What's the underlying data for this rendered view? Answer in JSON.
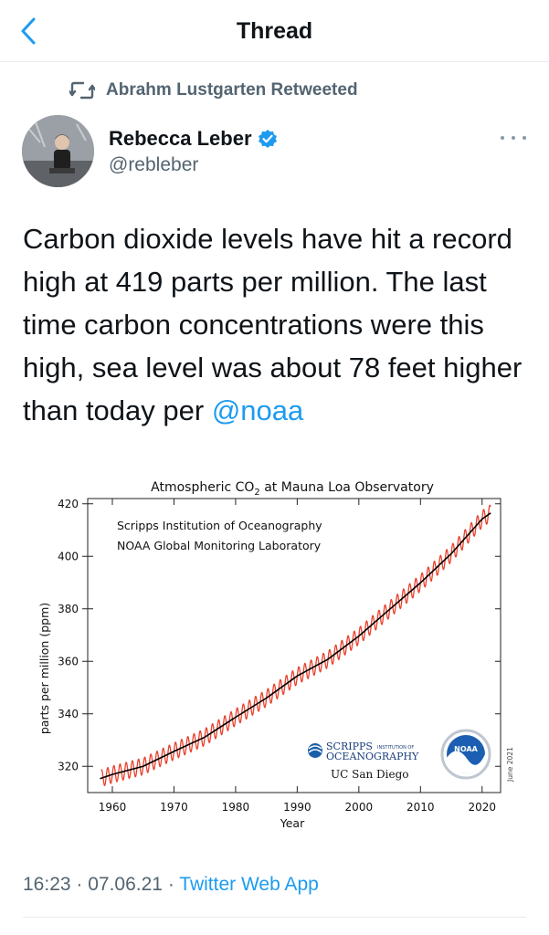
{
  "header": {
    "title": "Thread",
    "back_icon": "chevron-left-icon"
  },
  "retweet": {
    "text": "Abrahm Lustgarten Retweeted",
    "icon": "retweet-icon"
  },
  "author": {
    "name": "Rebecca Leber",
    "handle": "@rebleber",
    "verified": true,
    "verified_color": "#1d9bf0"
  },
  "tweet": {
    "text_before": "Carbon dioxide levels have hit a record high at 419 parts per million. The last time carbon concentrations were this high, sea level was about 78 feet higher than today per ",
    "mention": "@noaa"
  },
  "meta": {
    "time": "16:23",
    "sep1": " · ",
    "date": "07.06.21",
    "sep2": " · ",
    "app": "Twitter Web App"
  },
  "colors": {
    "accent": "#1d9bf0",
    "text": "#0f1419",
    "secondary": "#536471",
    "seasonal_line": "#e8412e",
    "trend_line": "#000000"
  },
  "chart_data": {
    "type": "line",
    "title": "Atmospheric CO",
    "title_sub": "2",
    "title_rest": " at Mauna Loa Observatory",
    "subtitle_lines": [
      "Scripps Institution of Oceanography",
      "NOAA Global Monitoring Laboratory"
    ],
    "xlabel": "Year",
    "ylabel": "parts per million (ppm)",
    "xlim": [
      1956,
      2023
    ],
    "ylim": [
      310,
      422
    ],
    "x_ticks": [
      1960,
      1970,
      1980,
      1990,
      2000,
      2010,
      2020
    ],
    "y_ticks": [
      320,
      340,
      360,
      380,
      400,
      420
    ],
    "grid": false,
    "side_note": "June 2021",
    "logos": {
      "scripps_line1": "SCRIPPS",
      "scripps_small": "INSTITUTION OF",
      "scripps_line2": "OCEANOGRAPHY",
      "ucsd": "UC San Diego",
      "noaa": "NOAA"
    },
    "series": [
      {
        "name": "monthly mean (seasonal cycle)",
        "start_year": 1958.2,
        "end_year": 2021.4,
        "seasonal_amplitude_ppm": 3.2
      },
      {
        "name": "seasonally corrected trend",
        "points": [
          [
            1958,
            315.3
          ],
          [
            1960,
            316.9
          ],
          [
            1965,
            320.0
          ],
          [
            1970,
            325.7
          ],
          [
            1975,
            331.1
          ],
          [
            1980,
            338.7
          ],
          [
            1985,
            346.0
          ],
          [
            1990,
            354.4
          ],
          [
            1995,
            360.8
          ],
          [
            2000,
            369.6
          ],
          [
            2005,
            379.8
          ],
          [
            2010,
            389.9
          ],
          [
            2015,
            401.0
          ],
          [
            2020,
            414.2
          ],
          [
            2021.4,
            416.5
          ]
        ]
      }
    ]
  }
}
